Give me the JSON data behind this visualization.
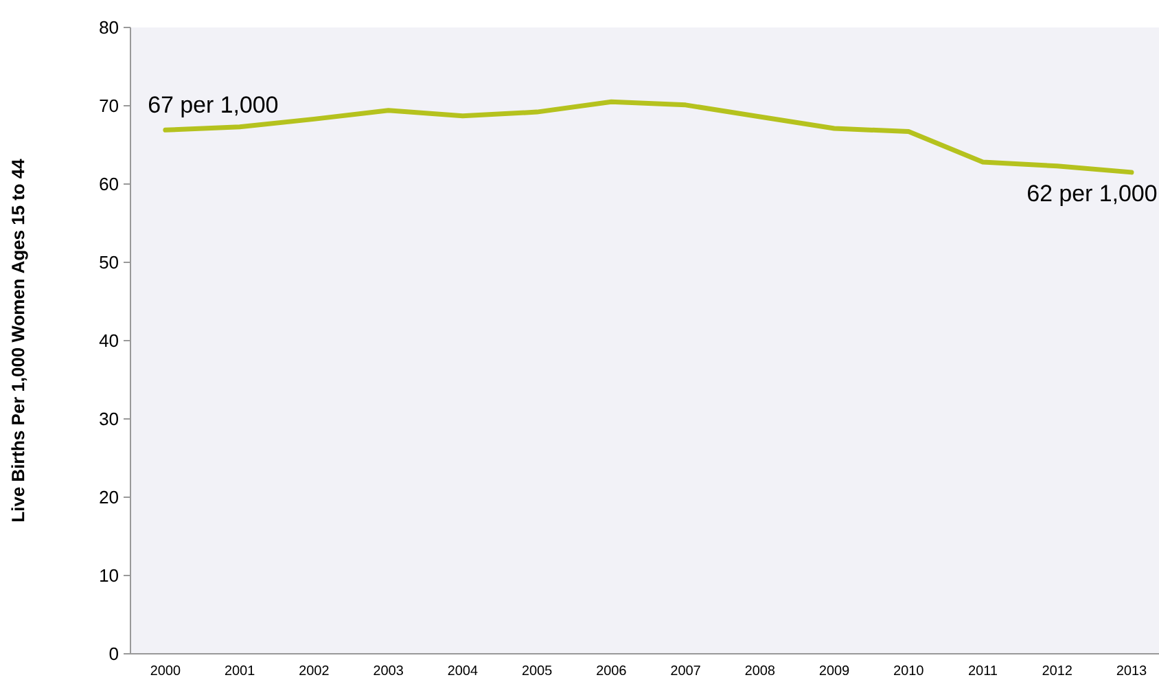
{
  "chart_data": {
    "type": "line",
    "ylabel": "Live Births Per 1,000 Women Ages 15 to 44",
    "categories": [
      "2000",
      "2001",
      "2002",
      "2003",
      "2004",
      "2005",
      "2006",
      "2007",
      "2008",
      "2009",
      "2010",
      "2011",
      "2012",
      "2013"
    ],
    "values": [
      66.9,
      67.3,
      68.3,
      69.4,
      68.7,
      69.2,
      70.5,
      70.1,
      68.6,
      67.1,
      66.7,
      62.8,
      62.3,
      61.5
    ],
    "color": "#b5c21e",
    "ylim": [
      0,
      80
    ],
    "yticks": [
      0,
      10,
      20,
      30,
      40,
      50,
      60,
      70,
      80
    ],
    "grid": false,
    "marker": "none",
    "line_style": "solid",
    "annotations": [
      {
        "text": "67 per 1,000",
        "x": "2000",
        "y": 66.9
      },
      {
        "text": "62 per 1,000",
        "x": "2013",
        "y": 61.5
      }
    ]
  }
}
